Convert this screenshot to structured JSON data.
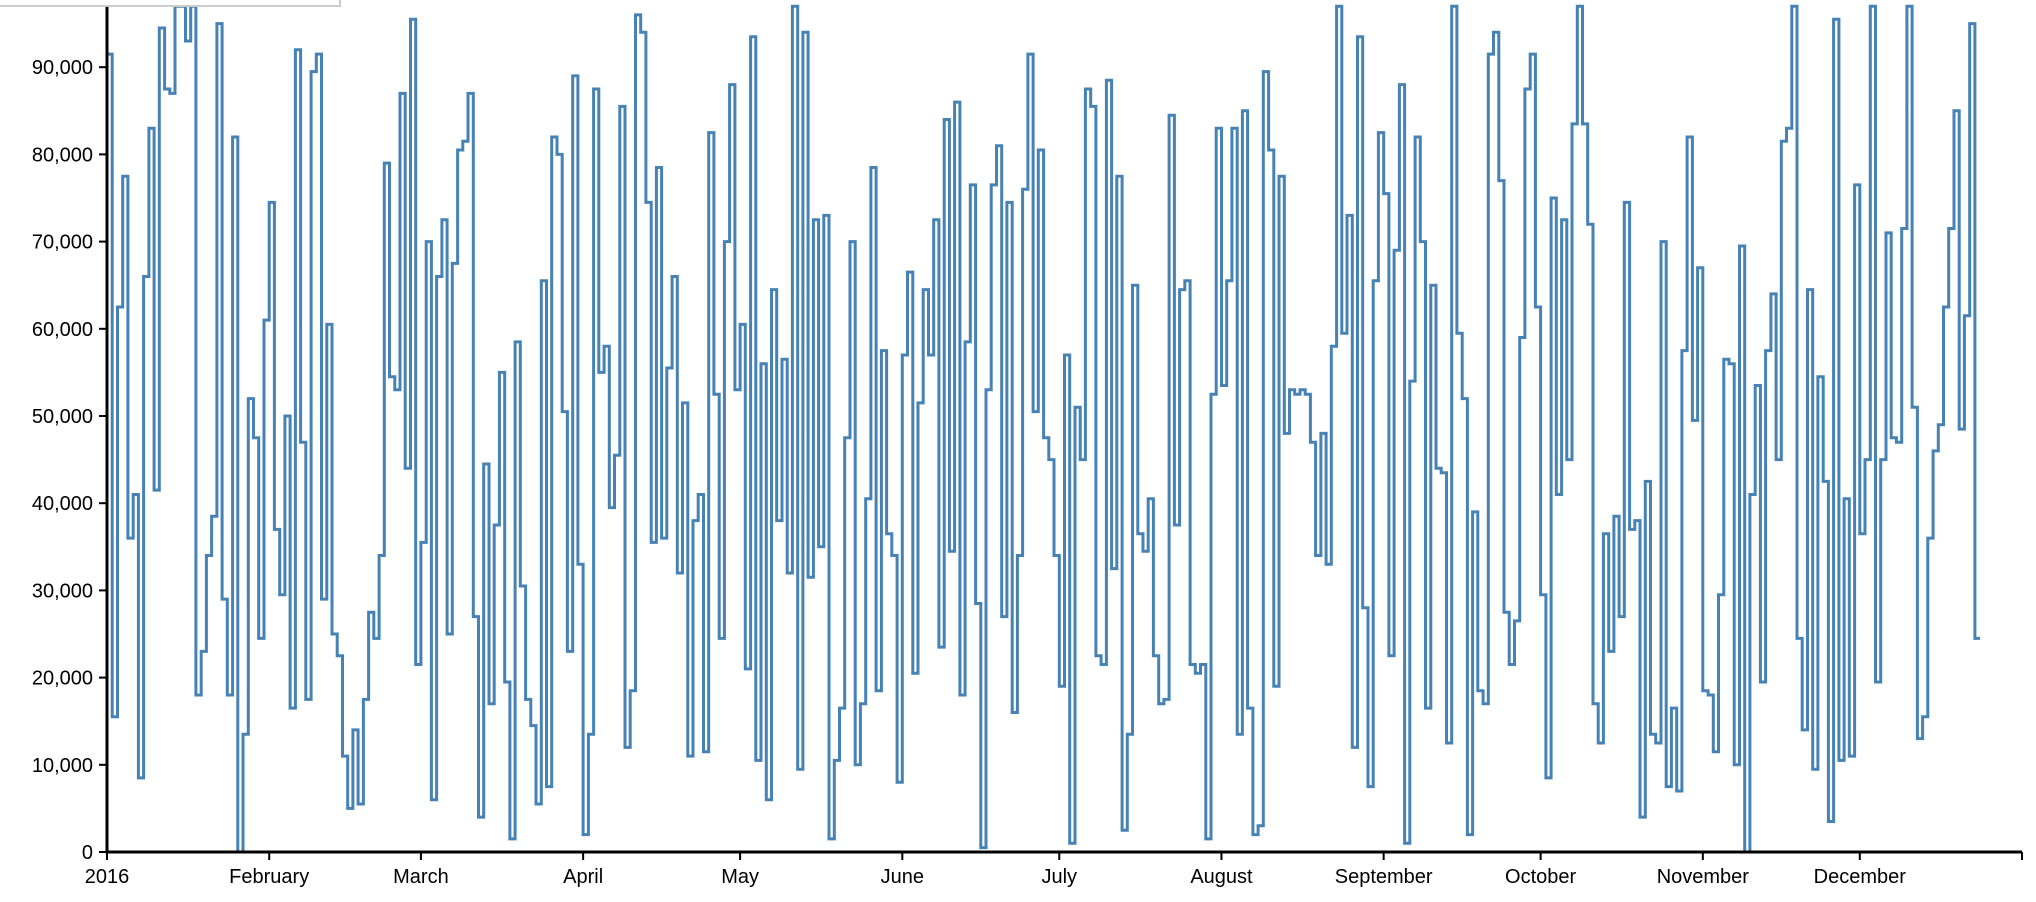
{
  "chart_data": {
    "type": "line",
    "interpolation": "step",
    "colors": {
      "line": "#4682b4",
      "axis": "#000000",
      "tooltip_border": "#cccccc"
    },
    "ylim": [
      0,
      97000
    ],
    "y_ticks": [
      {
        "value": 0,
        "label": "0"
      },
      {
        "value": 10000,
        "label": "10,000"
      },
      {
        "value": 20000,
        "label": "20,000"
      },
      {
        "value": 30000,
        "label": "30,000"
      },
      {
        "value": 40000,
        "label": "40,000"
      },
      {
        "value": 50000,
        "label": "50,000"
      },
      {
        "value": 60000,
        "label": "60,000"
      },
      {
        "value": 70000,
        "label": "70,000"
      },
      {
        "value": 80000,
        "label": "80,000"
      },
      {
        "value": 90000,
        "label": "90,000"
      }
    ],
    "x_range": [
      "2016-01-01",
      "2017-01-01"
    ],
    "x_ticks": [
      {
        "date": "2016-01-01",
        "label": "2016"
      },
      {
        "date": "2016-02-01",
        "label": "February"
      },
      {
        "date": "2016-03-01",
        "label": "March"
      },
      {
        "date": "2016-04-01",
        "label": "April"
      },
      {
        "date": "2016-05-01",
        "label": "May"
      },
      {
        "date": "2016-06-01",
        "label": "June"
      },
      {
        "date": "2016-07-01",
        "label": "July"
      },
      {
        "date": "2016-08-01",
        "label": "August"
      },
      {
        "date": "2016-09-01",
        "label": "September"
      },
      {
        "date": "2016-10-01",
        "label": "October"
      },
      {
        "date": "2016-11-01",
        "label": "November"
      },
      {
        "date": "2016-12-01",
        "label": "December"
      },
      {
        "date": "2017-01-01",
        "label": ""
      }
    ],
    "series": [
      {
        "start_date": "2016-01-01",
        "interval_days": 1,
        "values": [
          91500,
          15500,
          62500,
          77500,
          36000,
          41000,
          8500,
          66000,
          83000,
          41500,
          94500,
          87500,
          87000,
          97000,
          97000,
          93000,
          97000,
          18000,
          23000,
          34000,
          38500,
          95000,
          29000,
          18000,
          82000,
          0,
          13500,
          52000,
          47500,
          24500,
          61000,
          74500,
          37000,
          29500,
          50000,
          16500,
          92000,
          47000,
          17500,
          89500,
          91500,
          29000,
          60500,
          25000,
          22500,
          11000,
          5000,
          14000,
          5500,
          17500,
          27500,
          24500,
          34000,
          79000,
          54500,
          53000,
          87000,
          44000,
          95500,
          21500,
          35500,
          70000,
          6000,
          66000,
          72500,
          25000,
          67500,
          80500,
          81500,
          87000,
          27000,
          4000,
          44500,
          17000,
          37500,
          55000,
          19500,
          1500,
          58500,
          30500,
          17500,
          14500,
          5500,
          65500,
          7500,
          82000,
          80000,
          50500,
          23000,
          89000,
          33000,
          2000,
          13500,
          87500,
          55000,
          58000,
          39500,
          45500,
          85500,
          12000,
          18500,
          96000,
          94000,
          74500,
          35500,
          78500,
          36000,
          55500,
          66000,
          32000,
          51500,
          11000,
          38000,
          41000,
          11500,
          82500,
          52500,
          24500,
          70000,
          88000,
          53000,
          60500,
          21000,
          93500,
          10500,
          56000,
          6000,
          64500,
          38000,
          56500,
          32000,
          97000,
          9500,
          94000,
          31500,
          72500,
          35000,
          73000,
          1500,
          10500,
          16500,
          47500,
          70000,
          10000,
          17000,
          40500,
          78500,
          18500,
          57500,
          36500,
          34000,
          8000,
          57000,
          66500,
          20500,
          51500,
          64500,
          57000,
          72500,
          23500,
          84000,
          34500,
          86000,
          18000,
          58500,
          76500,
          28500,
          500,
          53000,
          76500,
          81000,
          27000,
          74500,
          16000,
          34000,
          76000,
          91500,
          50500,
          80500,
          47500,
          45000,
          34000,
          19000,
          57000,
          1000,
          51000,
          45000,
          87500,
          85500,
          22500,
          21500,
          88500,
          32500,
          77500,
          2500,
          13500,
          65000,
          36500,
          34500,
          40500,
          22500,
          17000,
          17500,
          84500,
          37500,
          64500,
          65500,
          21500,
          20500,
          21500,
          1500,
          52500,
          83000,
          53500,
          65500,
          83000,
          13500,
          85000,
          16500,
          2000,
          3000,
          89500,
          80500,
          19000,
          77500,
          48000,
          53000,
          52500,
          53000,
          52500,
          47000,
          34000,
          48000,
          33000,
          58000,
          97000,
          59500,
          73000,
          12000,
          93500,
          28000,
          7500,
          65500,
          82500,
          75500,
          22500,
          69000,
          88000,
          1000,
          54000,
          82000,
          70000,
          16500,
          65000,
          44000,
          43500,
          12500,
          97000,
          59500,
          52000,
          2000,
          39000,
          18500,
          17000,
          91500,
          94000,
          77000,
          27500,
          21500,
          26500,
          59000,
          87500,
          91500,
          62500,
          29500,
          8500,
          75000,
          41000,
          72500,
          45000,
          83500,
          97000,
          83500,
          72000,
          17000,
          12500,
          36500,
          23000,
          38500,
          27000,
          74500,
          37000,
          38000,
          4000,
          42500,
          13500,
          12500,
          70000,
          7500,
          16500,
          7000,
          57500,
          82000,
          49500,
          67000,
          18500,
          18000,
          11500,
          29500,
          56500,
          56000,
          10000,
          69500,
          0,
          41000,
          53500,
          19500,
          57500,
          64000,
          45000,
          81500,
          83000,
          97000,
          24500,
          14000,
          64500,
          9500,
          54500,
          42500,
          3500,
          95500,
          10500,
          40500,
          11000,
          76500,
          36500,
          45000,
          97000,
          19500,
          45000,
          71000,
          47500,
          47000,
          71500,
          97000,
          51000,
          13000,
          15500,
          36000,
          46000,
          49000,
          62500,
          71500,
          85000,
          48500,
          61500,
          95000,
          24500
        ]
      }
    ]
  },
  "tooltip": {
    "text": ""
  }
}
